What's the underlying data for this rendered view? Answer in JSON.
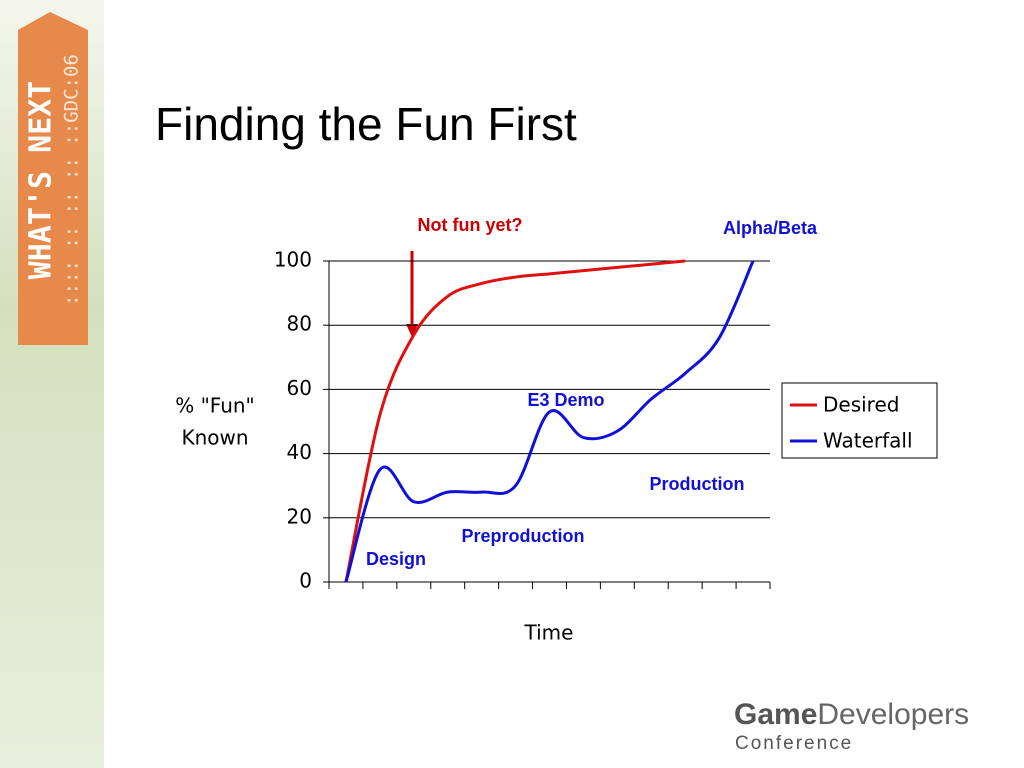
{
  "chart_data": {
    "type": "line",
    "title": "Finding the Fun First",
    "categories": [
      null,
      null,
      null,
      null,
      null,
      null,
      null,
      null,
      null,
      null,
      null,
      null,
      null
    ],
    "series": [
      {
        "name": "Desired",
        "color": "#e01010",
        "values": [
          0,
          52,
          77,
          89,
          93,
          95,
          96,
          97,
          98,
          99,
          100,
          null,
          null
        ]
      },
      {
        "name": "Waterfall",
        "color": "#1010d8",
        "values": [
          0,
          35,
          25,
          28,
          28,
          30,
          53,
          45,
          47,
          57,
          65,
          76,
          100
        ]
      }
    ],
    "ylim": [
      0,
      100
    ],
    "yticks": [
      0,
      20,
      40,
      60,
      80,
      100
    ],
    "grid": true,
    "ylabel": [
      "% \"Fun\"",
      "Known"
    ],
    "xlabel": "Time",
    "legend": "right",
    "annotations": [
      {
        "text": "Not fun yet?",
        "color": "#cc0000"
      },
      {
        "text": "Alpha/Beta",
        "color": "#1010d8"
      },
      {
        "text": "E3 Demo",
        "color": "#1010d8"
      },
      {
        "text": "Production",
        "color": "#1010d8"
      },
      {
        "text": "Preproduction",
        "color": "#1010d8"
      },
      {
        "text": "Design",
        "color": "#1010d8"
      }
    ]
  },
  "slide": {
    "banner": "WHAT'S NEXT",
    "banner_sub": ":::: :: :: :: ::GDC:06",
    "logo_bold": "Game",
    "logo_light": "Developers",
    "logo_sub": "Conference"
  }
}
